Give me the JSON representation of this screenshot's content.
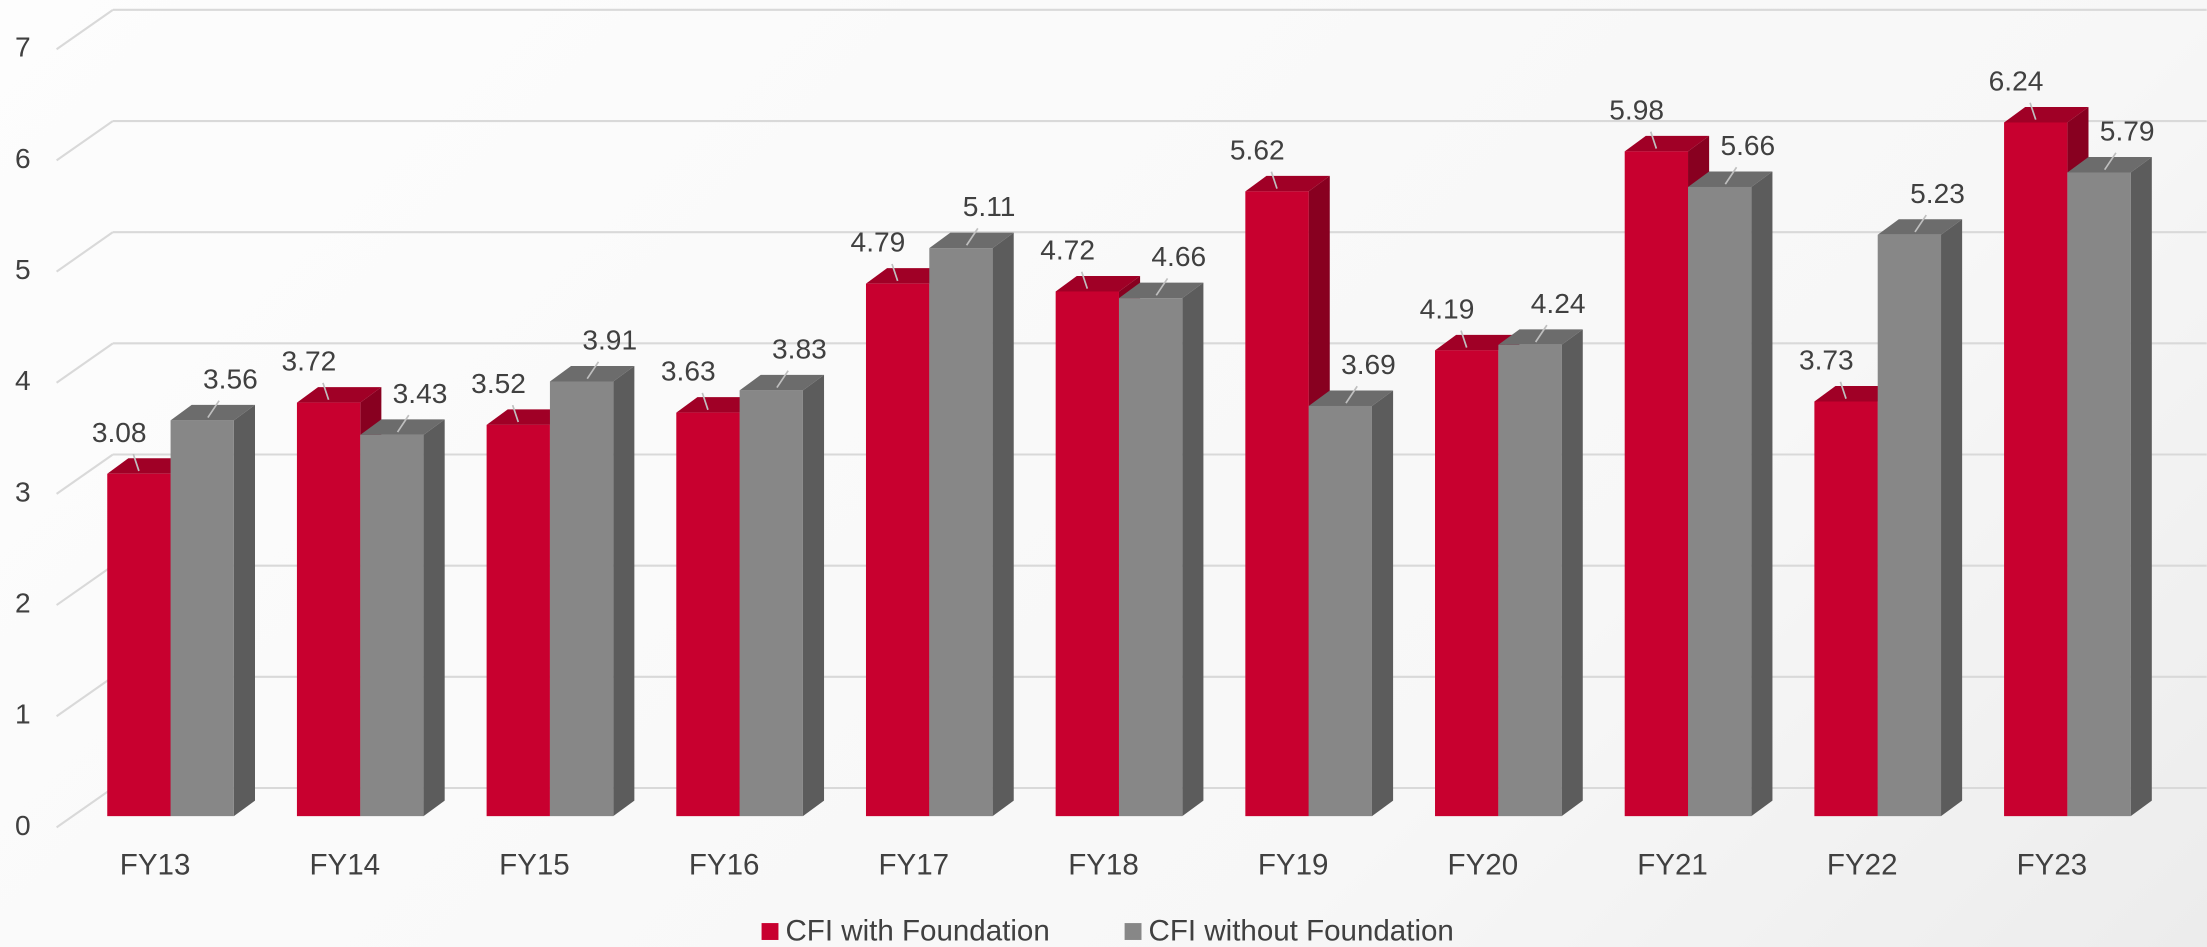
{
  "chart_data": {
    "type": "bar",
    "categories": [
      "FY13",
      "FY14",
      "FY15",
      "FY16",
      "FY17",
      "FY18",
      "FY19",
      "FY20",
      "FY21",
      "FY22",
      "FY23"
    ],
    "series": [
      {
        "name": "CFI with Foundation",
        "color": "#c8002f",
        "values": [
          3.08,
          3.72,
          3.52,
          3.63,
          4.79,
          4.72,
          5.62,
          4.19,
          5.98,
          3.73,
          6.24
        ]
      },
      {
        "name": "CFI without Foundation",
        "color": "#878787",
        "values": [
          3.56,
          3.43,
          3.91,
          3.83,
          5.11,
          4.66,
          3.69,
          4.24,
          5.66,
          5.23,
          5.79
        ]
      }
    ],
    "ylim": [
      0,
      7
    ],
    "yticks": [
      0,
      1,
      2,
      3,
      4,
      5,
      6,
      7
    ],
    "grid": true,
    "legend": "bottom"
  }
}
